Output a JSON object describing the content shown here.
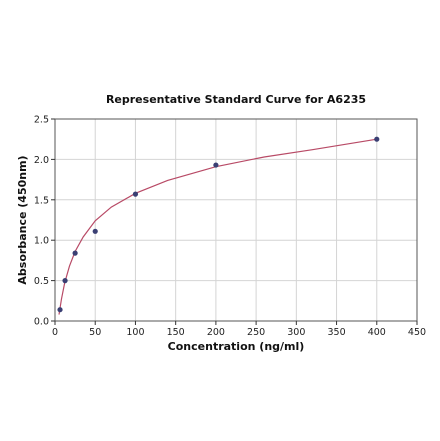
{
  "chart_data": {
    "type": "scatter",
    "title": "Representative Standard Curve for A6235",
    "xlabel": "Concentration (ng/ml)",
    "ylabel": "Absorbance (450nm)",
    "xlim": [
      0,
      450
    ],
    "ylim": [
      0,
      2.5
    ],
    "x_ticks": [
      "0",
      "50",
      "100",
      "150",
      "200",
      "250",
      "300",
      "350",
      "400",
      "450"
    ],
    "y_ticks": [
      "0.0",
      "0.5",
      "1.0",
      "1.5",
      "2.0",
      "2.5"
    ],
    "grid": true,
    "series": [
      {
        "x": [
          6.25,
          12.5,
          25,
          50,
          100,
          200,
          400
        ],
        "y": [
          0.14,
          0.5,
          0.84,
          1.11,
          1.57,
          1.93,
          2.25
        ]
      }
    ],
    "fit": {
      "type": "4PL",
      "x": [
        5,
        8,
        12,
        18,
        25,
        35,
        50,
        70,
        100,
        140,
        200,
        260,
        320,
        400
      ],
      "y": [
        0.08,
        0.27,
        0.47,
        0.68,
        0.86,
        1.04,
        1.24,
        1.41,
        1.58,
        1.74,
        1.91,
        2.03,
        2.12,
        2.25
      ]
    },
    "colors": {
      "points": "#3a3f73",
      "fit_line": "#b84a66",
      "grid": "#d4d4d4"
    }
  }
}
